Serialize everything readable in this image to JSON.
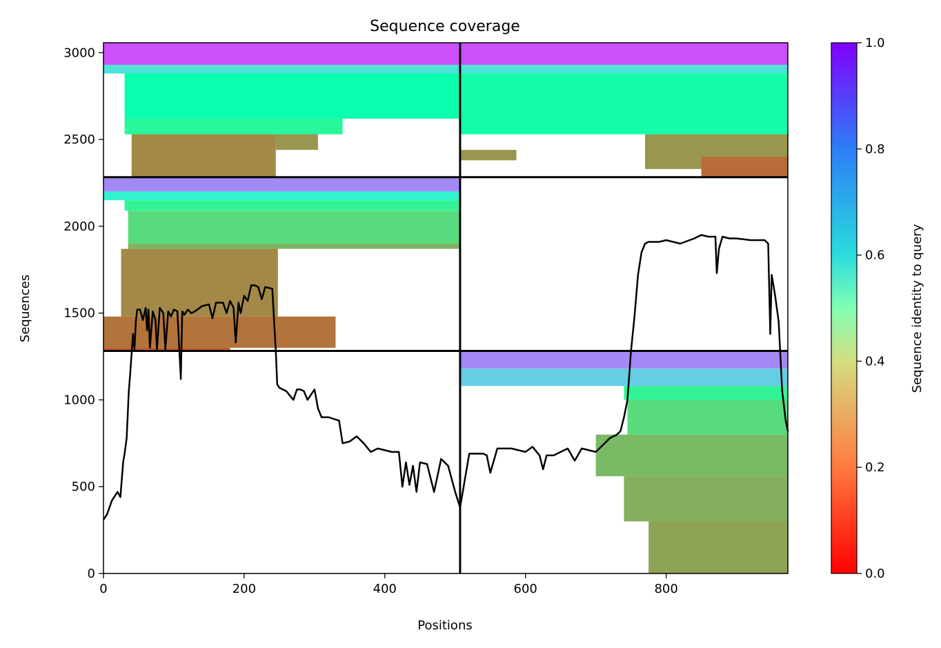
{
  "chart_data": {
    "type": "heatmap",
    "title": "Sequence coverage",
    "xlabel": "Positions",
    "ylabel": "Sequences",
    "xlim": [
      0,
      973
    ],
    "ylim": [
      0,
      3057
    ],
    "xticks": [
      0,
      200,
      400,
      600,
      800
    ],
    "yticks": [
      0,
      500,
      1000,
      1500,
      2000,
      2500,
      3000
    ],
    "colorbar": {
      "label": "Sequence identity to query",
      "range": [
        0,
        1
      ],
      "ticks": [
        0.0,
        0.2,
        0.4,
        0.6,
        0.8,
        1.0
      ],
      "colormap": "rainbow_r"
    },
    "divider_positions_x": [
      507
    ],
    "divider_positions_y": [
      1282,
      2283
    ],
    "coverage_blocks": [
      {
        "x0": 0,
        "x1": 507,
        "y0": 2283,
        "y1": 3057,
        "bands": [
          {
            "y0": 2930,
            "y1": 3057,
            "x0": 0,
            "x1": 507,
            "identity": 0.9
          },
          {
            "y0": 2880,
            "y1": 2930,
            "x0": 0,
            "x1": 507,
            "identity": 0.65
          },
          {
            "y0": 2620,
            "y1": 2880,
            "x0": 30,
            "x1": 507,
            "identity": 0.48
          },
          {
            "y0": 2530,
            "y1": 2620,
            "x0": 30,
            "x1": 340,
            "identity": 0.42
          },
          {
            "y0": 2283,
            "y1": 2530,
            "x0": 40,
            "x1": 245,
            "identity": 0.18
          },
          {
            "y0": 2440,
            "y1": 2530,
            "x0": 245,
            "x1": 305,
            "identity": 0.2
          }
        ]
      },
      {
        "x0": 507,
        "x1": 973,
        "y0": 2283,
        "y1": 3057,
        "bands": [
          {
            "y0": 2930,
            "y1": 3057,
            "x0": 507,
            "x1": 973,
            "identity": 0.9
          },
          {
            "y0": 2880,
            "y1": 2930,
            "x0": 507,
            "x1": 973,
            "identity": 0.65
          },
          {
            "y0": 2530,
            "y1": 2880,
            "x0": 507,
            "x1": 973,
            "identity": 0.46
          },
          {
            "y0": 2380,
            "y1": 2440,
            "x0": 507,
            "x1": 587,
            "identity": 0.2
          },
          {
            "y0": 2330,
            "y1": 2530,
            "x0": 770,
            "x1": 973,
            "identity": 0.2
          },
          {
            "y0": 2283,
            "y1": 2400,
            "x0": 850,
            "x1": 973,
            "identity": 0.14
          }
        ]
      },
      {
        "x0": 0,
        "x1": 507,
        "y0": 1282,
        "y1": 2283,
        "bands": [
          {
            "y0": 2200,
            "y1": 2283,
            "x0": 0,
            "x1": 507,
            "identity": 0.82
          },
          {
            "y0": 2150,
            "y1": 2200,
            "x0": 0,
            "x1": 507,
            "identity": 0.6
          },
          {
            "y0": 2090,
            "y1": 2150,
            "x0": 30,
            "x1": 507,
            "identity": 0.4
          },
          {
            "y0": 1900,
            "y1": 2090,
            "x0": 35,
            "x1": 507,
            "identity": 0.33
          },
          {
            "y0": 1870,
            "y1": 1900,
            "x0": 35,
            "x1": 507,
            "identity": 0.25
          },
          {
            "y0": 1480,
            "y1": 1870,
            "x0": 25,
            "x1": 248,
            "identity": 0.18
          },
          {
            "y0": 1300,
            "y1": 1480,
            "x0": 0,
            "x1": 330,
            "identity": 0.15
          },
          {
            "y0": 1282,
            "y1": 1300,
            "x0": 0,
            "x1": 180,
            "identity": 0.12
          }
        ]
      },
      {
        "x0": 507,
        "x1": 973,
        "y0": 0,
        "y1": 1282,
        "bands": [
          {
            "y0": 1180,
            "y1": 1282,
            "x0": 507,
            "x1": 973,
            "identity": 0.82
          },
          {
            "y0": 1080,
            "y1": 1180,
            "x0": 507,
            "x1": 973,
            "identity": 0.7
          },
          {
            "y0": 1000,
            "y1": 1080,
            "x0": 740,
            "x1": 973,
            "identity": 0.4
          },
          {
            "y0": 800,
            "y1": 1000,
            "x0": 745,
            "x1": 973,
            "identity": 0.33
          },
          {
            "y0": 560,
            "y1": 800,
            "x0": 700,
            "x1": 973,
            "identity": 0.26
          },
          {
            "y0": 300,
            "y1": 560,
            "x0": 740,
            "x1": 973,
            "identity": 0.24
          },
          {
            "y0": 0,
            "y1": 300,
            "x0": 775,
            "x1": 973,
            "identity": 0.22
          }
        ]
      }
    ],
    "coverage_line": {
      "x": [
        0,
        5,
        12,
        20,
        24,
        28,
        30,
        33,
        36,
        38,
        42,
        44,
        46,
        48,
        52,
        56,
        60,
        62,
        64,
        66,
        70,
        74,
        76,
        80,
        85,
        88,
        92,
        96,
        100,
        105,
        110,
        112,
        115,
        120,
        125,
        130,
        140,
        150,
        155,
        160,
        170,
        175,
        180,
        185,
        188,
        192,
        195,
        200,
        205,
        210,
        215,
        220,
        225,
        230,
        240,
        245,
        247,
        250,
        255,
        260,
        270,
        275,
        280,
        285,
        290,
        300,
        305,
        310,
        320,
        335,
        340,
        350,
        360,
        370,
        380,
        390,
        400,
        410,
        420,
        425,
        430,
        435,
        440,
        445,
        450,
        460,
        470,
        480,
        490,
        500,
        507,
        520,
        540,
        545,
        550,
        560,
        580,
        600,
        610,
        620,
        625,
        630,
        640,
        660,
        670,
        680,
        690,
        700,
        710,
        720,
        730,
        735,
        740,
        745,
        750,
        755,
        760,
        765,
        770,
        775,
        780,
        790,
        800,
        820,
        840,
        850,
        860,
        870,
        872,
        875,
        880,
        890,
        900,
        920,
        940,
        945,
        948,
        950,
        955,
        960,
        965,
        970,
        973
      ],
      "y": [
        310,
        340,
        420,
        470,
        440,
        640,
        690,
        780,
        1050,
        1150,
        1380,
        1290,
        1450,
        1520,
        1520,
        1460,
        1530,
        1400,
        1520,
        1300,
        1510,
        1460,
        1290,
        1530,
        1500,
        1290,
        1510,
        1480,
        1520,
        1510,
        1120,
        1510,
        1490,
        1520,
        1500,
        1510,
        1540,
        1550,
        1470,
        1560,
        1560,
        1500,
        1570,
        1530,
        1330,
        1560,
        1500,
        1600,
        1570,
        1660,
        1660,
        1650,
        1580,
        1650,
        1640,
        1280,
        1090,
        1070,
        1060,
        1050,
        1000,
        1060,
        1060,
        1050,
        1000,
        1060,
        950,
        900,
        900,
        880,
        750,
        760,
        790,
        750,
        700,
        720,
        710,
        700,
        700,
        500,
        640,
        510,
        620,
        470,
        640,
        630,
        470,
        660,
        620,
        470,
        380,
        690,
        690,
        680,
        580,
        720,
        720,
        700,
        730,
        680,
        600,
        680,
        680,
        720,
        650,
        720,
        710,
        700,
        740,
        780,
        800,
        820,
        900,
        1000,
        1280,
        1480,
        1720,
        1850,
        1900,
        1910,
        1910,
        1910,
        1920,
        1900,
        1930,
        1950,
        1940,
        1940,
        1730,
        1870,
        1940,
        1930,
        1930,
        1920,
        1920,
        1900,
        1380,
        1720,
        1600,
        1450,
        1050,
        880,
        820
      ]
    }
  }
}
